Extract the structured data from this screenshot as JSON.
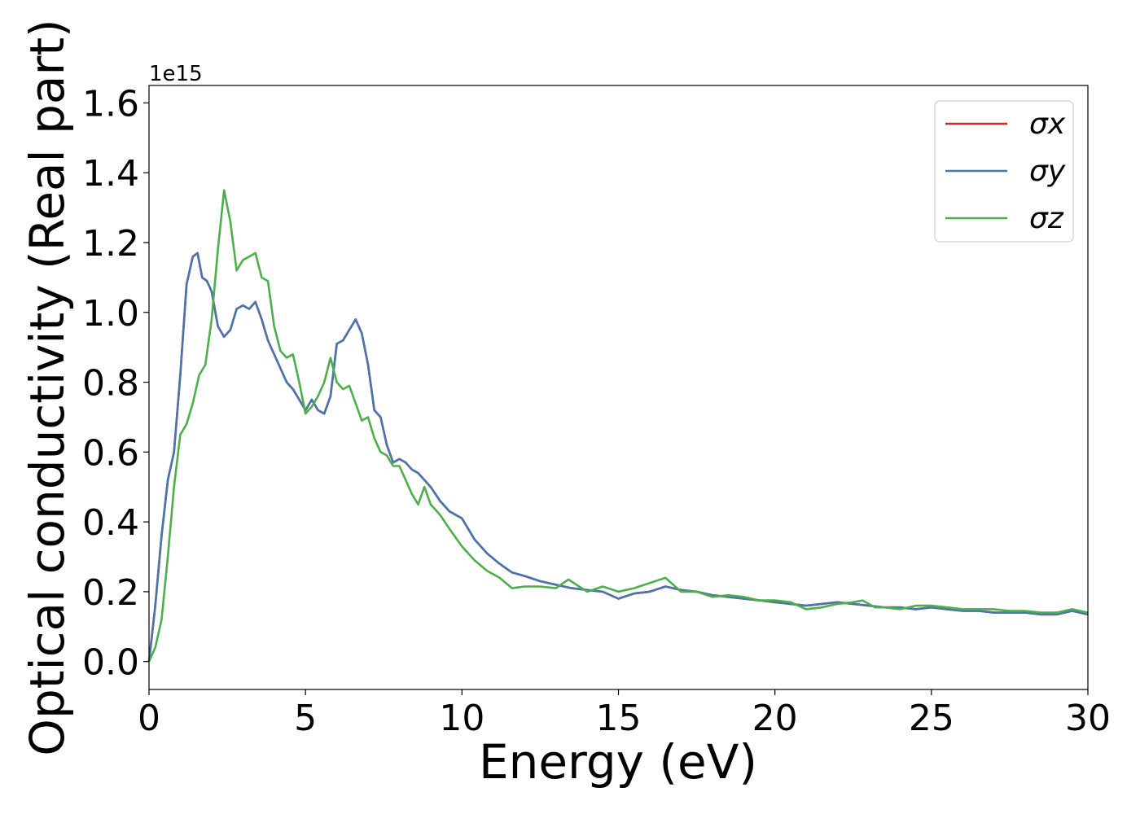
{
  "chart_data": {
    "type": "line",
    "title": "",
    "xlabel": "Energy (eV)",
    "ylabel": "Optical conductivity (Real part)",
    "y_offset_label": "1e15",
    "xlim": [
      0,
      30
    ],
    "ylim": [
      -0.08,
      1.65
    ],
    "x_ticks": [
      0,
      5,
      10,
      15,
      20,
      25,
      30
    ],
    "x_tick_labels": [
      "0",
      "5",
      "10",
      "15",
      "20",
      "25",
      "30"
    ],
    "y_ticks": [
      0.0,
      0.2,
      0.4,
      0.6,
      0.8,
      1.0,
      1.2,
      1.4,
      1.6
    ],
    "y_tick_labels": [
      "0.0",
      "0.2",
      "0.4",
      "0.6",
      "0.8",
      "1.0",
      "1.2",
      "1.4",
      "1.6"
    ],
    "grid": false,
    "legend_position": "top-right",
    "series": [
      {
        "name": "σx",
        "color": "#d62728",
        "x": [
          0,
          0.2,
          0.4,
          0.6,
          0.8,
          1.0,
          1.2,
          1.4,
          1.55,
          1.7,
          1.85,
          2.0,
          2.2,
          2.4,
          2.6,
          2.8,
          3.0,
          3.2,
          3.4,
          3.6,
          3.8,
          4.0,
          4.2,
          4.4,
          4.6,
          4.8,
          5.0,
          5.2,
          5.4,
          5.6,
          5.8,
          6.0,
          6.2,
          6.4,
          6.6,
          6.8,
          7.0,
          7.2,
          7.4,
          7.6,
          7.8,
          8.0,
          8.2,
          8.4,
          8.6,
          8.8,
          9.0,
          9.3,
          9.6,
          10.0,
          10.4,
          10.8,
          11.2,
          11.6,
          12.0,
          12.5,
          13.0,
          13.5,
          14.0,
          14.5,
          15.0,
          15.5,
          16.0,
          16.5,
          17.0,
          17.5,
          18.0,
          18.5,
          19.0,
          19.5,
          20.0,
          20.5,
          21.0,
          21.5,
          22.0,
          22.5,
          23.0,
          23.5,
          24.0,
          24.5,
          25.0,
          25.5,
          26.0,
          26.5,
          27.0,
          27.5,
          28.0,
          28.5,
          29.0,
          29.5,
          30.0
        ],
        "values": [
          0.0,
          0.16,
          0.36,
          0.52,
          0.6,
          0.82,
          1.08,
          1.16,
          1.17,
          1.1,
          1.09,
          1.06,
          0.96,
          0.93,
          0.95,
          1.01,
          1.02,
          1.01,
          1.03,
          0.98,
          0.92,
          0.88,
          0.84,
          0.8,
          0.78,
          0.75,
          0.72,
          0.75,
          0.72,
          0.71,
          0.76,
          0.91,
          0.92,
          0.95,
          0.98,
          0.94,
          0.85,
          0.72,
          0.7,
          0.62,
          0.57,
          0.58,
          0.57,
          0.55,
          0.54,
          0.52,
          0.5,
          0.46,
          0.43,
          0.41,
          0.35,
          0.31,
          0.28,
          0.255,
          0.245,
          0.23,
          0.22,
          0.21,
          0.205,
          0.2,
          0.18,
          0.195,
          0.2,
          0.215,
          0.205,
          0.2,
          0.19,
          0.185,
          0.18,
          0.175,
          0.17,
          0.165,
          0.16,
          0.165,
          0.17,
          0.165,
          0.16,
          0.155,
          0.155,
          0.15,
          0.155,
          0.15,
          0.145,
          0.145,
          0.14,
          0.14,
          0.14,
          0.135,
          0.135,
          0.145,
          0.135
        ]
      },
      {
        "name": "σy",
        "color": "#4a74ac",
        "x": [
          0,
          0.2,
          0.4,
          0.6,
          0.8,
          1.0,
          1.2,
          1.4,
          1.55,
          1.7,
          1.85,
          2.0,
          2.2,
          2.4,
          2.6,
          2.8,
          3.0,
          3.2,
          3.4,
          3.6,
          3.8,
          4.0,
          4.2,
          4.4,
          4.6,
          4.8,
          5.0,
          5.2,
          5.4,
          5.6,
          5.8,
          6.0,
          6.2,
          6.4,
          6.6,
          6.8,
          7.0,
          7.2,
          7.4,
          7.6,
          7.8,
          8.0,
          8.2,
          8.4,
          8.6,
          8.8,
          9.0,
          9.3,
          9.6,
          10.0,
          10.4,
          10.8,
          11.2,
          11.6,
          12.0,
          12.5,
          13.0,
          13.5,
          14.0,
          14.5,
          15.0,
          15.5,
          16.0,
          16.5,
          17.0,
          17.5,
          18.0,
          18.5,
          19.0,
          19.5,
          20.0,
          20.5,
          21.0,
          21.5,
          22.0,
          22.5,
          23.0,
          23.5,
          24.0,
          24.5,
          25.0,
          25.5,
          26.0,
          26.5,
          27.0,
          27.5,
          28.0,
          28.5,
          29.0,
          29.5,
          30.0
        ],
        "values": [
          0.0,
          0.16,
          0.36,
          0.52,
          0.6,
          0.82,
          1.08,
          1.16,
          1.17,
          1.1,
          1.09,
          1.06,
          0.96,
          0.93,
          0.95,
          1.01,
          1.02,
          1.01,
          1.03,
          0.98,
          0.92,
          0.88,
          0.84,
          0.8,
          0.78,
          0.75,
          0.72,
          0.75,
          0.72,
          0.71,
          0.76,
          0.91,
          0.92,
          0.95,
          0.98,
          0.94,
          0.85,
          0.72,
          0.7,
          0.62,
          0.57,
          0.58,
          0.57,
          0.55,
          0.54,
          0.52,
          0.5,
          0.46,
          0.43,
          0.41,
          0.35,
          0.31,
          0.28,
          0.255,
          0.245,
          0.23,
          0.22,
          0.21,
          0.205,
          0.2,
          0.18,
          0.195,
          0.2,
          0.215,
          0.205,
          0.2,
          0.19,
          0.185,
          0.18,
          0.175,
          0.17,
          0.165,
          0.16,
          0.165,
          0.17,
          0.165,
          0.16,
          0.155,
          0.155,
          0.15,
          0.155,
          0.15,
          0.145,
          0.145,
          0.14,
          0.14,
          0.14,
          0.135,
          0.135,
          0.145,
          0.135
        ]
      },
      {
        "name": "σz",
        "color": "#4daf4a",
        "x": [
          0,
          0.2,
          0.4,
          0.6,
          0.8,
          1.0,
          1.2,
          1.4,
          1.6,
          1.8,
          2.0,
          2.2,
          2.4,
          2.6,
          2.8,
          3.0,
          3.2,
          3.4,
          3.6,
          3.8,
          4.0,
          4.2,
          4.4,
          4.6,
          4.8,
          5.0,
          5.2,
          5.4,
          5.6,
          5.8,
          6.0,
          6.2,
          6.4,
          6.6,
          6.8,
          7.0,
          7.2,
          7.4,
          7.6,
          7.8,
          8.0,
          8.2,
          8.4,
          8.6,
          8.8,
          9.0,
          9.3,
          9.6,
          10.0,
          10.4,
          10.8,
          11.2,
          11.6,
          12.0,
          12.5,
          13.0,
          13.4,
          14.0,
          14.5,
          15.0,
          15.5,
          16.0,
          16.5,
          17.0,
          17.5,
          18.0,
          18.5,
          19.0,
          19.5,
          20.0,
          20.5,
          21.0,
          21.5,
          22.0,
          22.5,
          22.8,
          23.2,
          23.5,
          24.0,
          24.5,
          25.0,
          25.5,
          26.0,
          26.5,
          27.0,
          27.5,
          28.0,
          28.5,
          29.0,
          29.5,
          30.0
        ],
        "values": [
          0.0,
          0.04,
          0.12,
          0.3,
          0.5,
          0.65,
          0.68,
          0.74,
          0.82,
          0.85,
          0.98,
          1.18,
          1.35,
          1.26,
          1.12,
          1.15,
          1.16,
          1.17,
          1.1,
          1.09,
          0.96,
          0.89,
          0.87,
          0.88,
          0.8,
          0.71,
          0.73,
          0.76,
          0.8,
          0.87,
          0.8,
          0.78,
          0.79,
          0.74,
          0.69,
          0.7,
          0.64,
          0.6,
          0.59,
          0.56,
          0.56,
          0.52,
          0.48,
          0.45,
          0.5,
          0.45,
          0.42,
          0.38,
          0.33,
          0.29,
          0.26,
          0.24,
          0.21,
          0.215,
          0.215,
          0.21,
          0.235,
          0.2,
          0.215,
          0.2,
          0.21,
          0.225,
          0.24,
          0.2,
          0.2,
          0.185,
          0.19,
          0.185,
          0.175,
          0.175,
          0.17,
          0.15,
          0.155,
          0.165,
          0.17,
          0.175,
          0.155,
          0.155,
          0.15,
          0.16,
          0.16,
          0.155,
          0.15,
          0.15,
          0.15,
          0.145,
          0.145,
          0.14,
          0.14,
          0.15,
          0.14
        ]
      }
    ]
  }
}
